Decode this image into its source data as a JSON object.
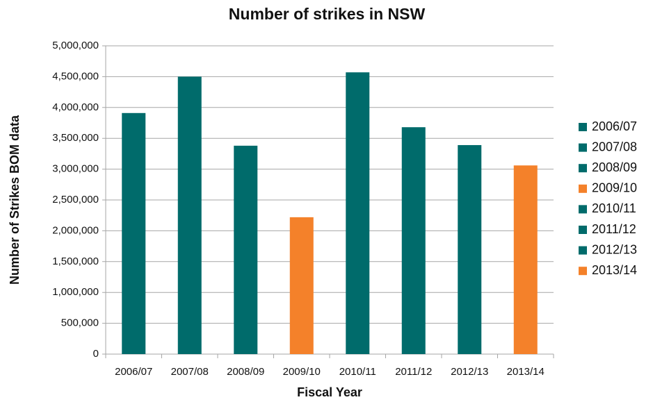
{
  "chart_data": {
    "type": "bar",
    "title": "Number of strikes in NSW",
    "x_label": "Fiscal Year",
    "y_label": "Number of Strikes BOM data",
    "categories": [
      "2006/07",
      "2007/08",
      "2008/09",
      "2009/10",
      "2010/11",
      "2011/12",
      "2012/13",
      "2013/14"
    ],
    "values": [
      3910000,
      4500000,
      3380000,
      2220000,
      4570000,
      3680000,
      3390000,
      3060000
    ],
    "colors": [
      "#006b6b",
      "#006b6b",
      "#006b6b",
      "#f4812a",
      "#006b6b",
      "#006b6b",
      "#006b6b",
      "#f4812a"
    ],
    "ylim": [
      0,
      5000000
    ],
    "yticks": [
      0,
      {
        "value": 500000,
        "label": "500,000"
      },
      {
        "value": 1000000,
        "label": "1,000,000"
      },
      {
        "value": 1500000,
        "label": "1,500,000"
      },
      {
        "value": 2000000,
        "label": "2,000,000"
      },
      {
        "value": 2500000,
        "label": "2,500,000"
      },
      {
        "value": 3000000,
        "label": "3,000,000"
      },
      {
        "value": 3500000,
        "label": "3,500,000"
      },
      {
        "value": 4000000,
        "label": "4,000,000"
      },
      {
        "value": 4500000,
        "label": "4,500,000"
      },
      {
        "value": 5000000,
        "label": "5,000,000"
      }
    ],
    "grid": true,
    "legend": "right"
  }
}
